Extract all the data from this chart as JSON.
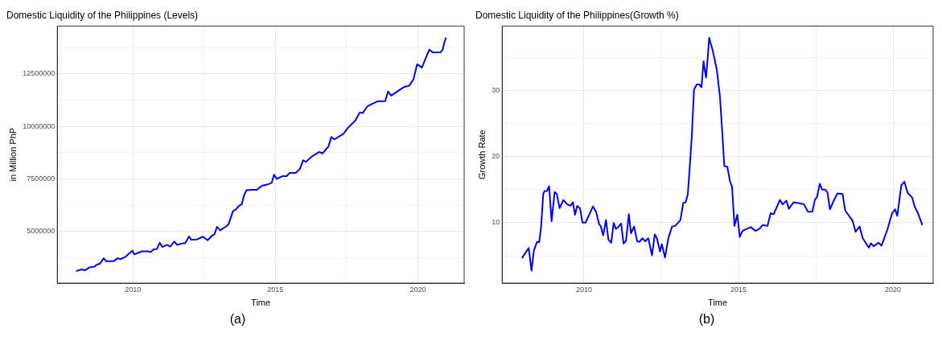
{
  "chart_data": [
    {
      "type": "line",
      "title": "Domestic Liquidity of the Philippines (Levels)",
      "xlabel": "Time",
      "ylabel": "in Million PhP",
      "xlim": [
        2007.35,
        2021.62
      ],
      "ylim": [
        2550000,
        14780000
      ],
      "xticks": [
        {
          "value": 2007.5,
          "label": null
        },
        2010,
        {
          "value": 2012.5,
          "label": null
        },
        2015,
        {
          "value": 2017.5,
          "label": null
        },
        2020
      ],
      "yticks": [
        {
          "value": 3750000,
          "label": null
        },
        5000000,
        {
          "value": 6250000,
          "label": null
        },
        7500000,
        {
          "value": 8750000,
          "label": null
        },
        10000000,
        {
          "value": 11250000,
          "label": null
        },
        12500000,
        {
          "value": 13750000,
          "label": null
        }
      ],
      "grid": true,
      "legend": false,
      "marker": "none",
      "line_style": "solid",
      "annotations": [
        "(a)"
      ],
      "series": [
        {
          "color": "#0000ff",
          "x": [
            2008.01,
            2008.2,
            2008.32,
            2008.48,
            2008.64,
            2008.74,
            2008.85,
            2008.98,
            2009.06,
            2009.32,
            2009.46,
            2009.58,
            2009.74,
            2009.98,
            2010.05,
            2010.31,
            2010.52,
            2010.63,
            2010.73,
            2010.84,
            2010.94,
            2011.03,
            2011.2,
            2011.31,
            2011.45,
            2011.55,
            2011.73,
            2011.83,
            2011.97,
            2012.04,
            2012.25,
            2012.46,
            2012.62,
            2012.77,
            2012.86,
            2012.95,
            2013.06,
            2013.25,
            2013.35,
            2013.51,
            2013.61,
            2013.72,
            2013.82,
            2013.9,
            2013.98,
            2014.19,
            2014.35,
            2014.52,
            2014.76,
            2014.87,
            2014.95,
            2015.05,
            2015.24,
            2015.39,
            2015.5,
            2015.71,
            2015.86,
            2015.97,
            2016.07,
            2016.28,
            2016.54,
            2016.65,
            2016.86,
            2016.96,
            2017.07,
            2017.28,
            2017.38,
            2017.54,
            2017.8,
            2017.96,
            2018.06,
            2018.22,
            2018.38,
            2018.59,
            2018.85,
            2018.95,
            2019.06,
            2019.32,
            2019.53,
            2019.69,
            2019.84,
            2019.97,
            2020.14,
            2020.26,
            2020.4,
            2020.52,
            2020.79,
            2020.87,
            2020.91,
            2020.98
          ],
          "values": [
            3120000,
            3200000,
            3160000,
            3300000,
            3330000,
            3430000,
            3480000,
            3730000,
            3590000,
            3590000,
            3730000,
            3690000,
            3800000,
            4090000,
            3920000,
            4060000,
            4060000,
            4030000,
            4160000,
            4170000,
            4470000,
            4270000,
            4370000,
            4290000,
            4530000,
            4370000,
            4440000,
            4440000,
            4770000,
            4620000,
            4630000,
            4760000,
            4590000,
            4800000,
            4870000,
            5230000,
            5060000,
            5230000,
            5330000,
            5970000,
            6050000,
            6230000,
            6300000,
            6720000,
            6970000,
            6990000,
            6990000,
            7180000,
            7260000,
            7320000,
            7710000,
            7510000,
            7640000,
            7640000,
            7790000,
            7790000,
            7980000,
            8390000,
            8320000,
            8580000,
            8790000,
            8720000,
            9050000,
            9500000,
            9390000,
            9570000,
            9640000,
            9930000,
            10280000,
            10670000,
            10640000,
            10950000,
            11070000,
            11200000,
            11210000,
            11670000,
            11470000,
            11710000,
            11890000,
            11940000,
            12240000,
            12960000,
            12810000,
            13210000,
            13660000,
            13520000,
            13530000,
            13660000,
            13920000,
            14230000
          ]
        }
      ]
    },
    {
      "type": "line",
      "title": "Domestic Liquidity of the Philippines(Growth %)",
      "xlabel": "Time",
      "ylabel": "Growth Rate",
      "xlim": [
        2007.35,
        2021.3
      ],
      "ylim": [
        0.87,
        39.7
      ],
      "xticks": [
        {
          "value": 2007.5,
          "label": null
        },
        2010,
        {
          "value": 2012.5,
          "label": null
        },
        2015,
        {
          "value": 2017.5,
          "label": null
        },
        2020
      ],
      "yticks": [
        {
          "value": 5,
          "label": null
        },
        10,
        {
          "value": 15,
          "label": null
        },
        20,
        {
          "value": 25,
          "label": null
        },
        30,
        {
          "value": 35,
          "label": null
        }
      ],
      "grid": true,
      "legend": false,
      "marker": "none",
      "line_style": "solid",
      "annotations": [
        "(b)"
      ],
      "series": [
        {
          "color": "#0000ff",
          "x": [
            2007.99,
            2008.21,
            2008.3,
            2008.38,
            2008.48,
            2008.55,
            2008.61,
            2008.68,
            2008.72,
            2008.8,
            2008.87,
            2008.95,
            2009.05,
            2009.12,
            2009.21,
            2009.33,
            2009.46,
            2009.56,
            2009.64,
            2009.71,
            2009.78,
            2009.87,
            2009.95,
            2010.05,
            2010.29,
            2010.39,
            2010.49,
            2010.54,
            2010.62,
            2010.71,
            2010.79,
            2010.88,
            2010.96,
            2011.03,
            2011.1,
            2011.2,
            2011.28,
            2011.36,
            2011.45,
            2011.52,
            2011.62,
            2011.72,
            2011.79,
            2011.89,
            2011.98,
            2012.08,
            2012.2,
            2012.29,
            2012.36,
            2012.46,
            2012.52,
            2012.62,
            2012.73,
            2012.85,
            2012.95,
            2013.12,
            2013.21,
            2013.29,
            2013.36,
            2013.44,
            2013.49,
            2013.56,
            2013.65,
            2013.73,
            2013.8,
            2013.87,
            2013.91,
            2013.95,
            2014.01,
            2014.05,
            2014.17,
            2014.3,
            2014.4,
            2014.48,
            2014.54,
            2014.64,
            2014.72,
            2014.79,
            2014.87,
            2014.96,
            2015.04,
            2015.13,
            2015.26,
            2015.4,
            2015.55,
            2015.67,
            2015.78,
            2015.94,
            2016.04,
            2016.14,
            2016.34,
            2016.43,
            2016.55,
            2016.63,
            2016.78,
            2017.02,
            2017.12,
            2017.25,
            2017.39,
            2017.47,
            2017.54,
            2017.63,
            2017.71,
            2017.81,
            2017.88,
            2017.96,
            2018.07,
            2018.2,
            2018.37,
            2018.45,
            2018.69,
            2018.79,
            2018.92,
            2019.02,
            2019.22,
            2019.28,
            2019.38,
            2019.53,
            2019.63,
            2019.82,
            2019.97,
            2020.07,
            2020.14,
            2020.27,
            2020.37,
            2020.47,
            2020.62,
            2020.71,
            2020.81,
            2020.95
          ],
          "values": [
            4.65,
            6.17,
            2.74,
            5.86,
            7.1,
            7.06,
            9.33,
            14.32,
            14.77,
            14.77,
            15.52,
            10.22,
            14.63,
            14.32,
            12.18,
            13.43,
            12.76,
            12.54,
            13.07,
            11.2,
            12.54,
            12.18,
            10.0,
            10.0,
            12.45,
            11.65,
            9.73,
            9.51,
            8.08,
            10.4,
            7.42,
            6.97,
            9.96,
            9.06,
            9.29,
            9.87,
            6.84,
            7.28,
            11.29,
            8.4,
            9.42,
            7.19,
            7.1,
            7.64,
            7.19,
            7.64,
            5.06,
            8.22,
            7.64,
            5.63,
            6.75,
            4.74,
            7.64,
            9.42,
            9.51,
            10.4,
            12.98,
            13.07,
            14.32,
            19.67,
            23.23,
            30.13,
            30.89,
            30.89,
            30.45,
            34.37,
            33.03,
            31.92,
            35.26,
            37.93,
            35.92,
            33.03,
            29.02,
            23.23,
            18.55,
            18.42,
            16.33,
            15.43,
            9.51,
            11.2,
            7.86,
            8.75,
            9.06,
            9.33,
            8.75,
            9.06,
            9.64,
            9.51,
            11.43,
            11.29,
            13.43,
            12.76,
            13.34,
            12.09,
            13.07,
            12.9,
            12.76,
            11.65,
            11.65,
            13.43,
            13.88,
            15.88,
            14.99,
            14.99,
            14.54,
            12.0,
            13.21,
            14.41,
            14.32,
            11.87,
            10.31,
            8.62,
            9.42,
            7.64,
            6.21,
            6.88,
            6.44,
            6.97,
            6.53,
            8.98,
            11.43,
            12.0,
            11.02,
            15.66,
            16.19,
            14.54,
            13.79,
            12.32,
            11.43,
            9.64
          ]
        }
      ]
    }
  ]
}
